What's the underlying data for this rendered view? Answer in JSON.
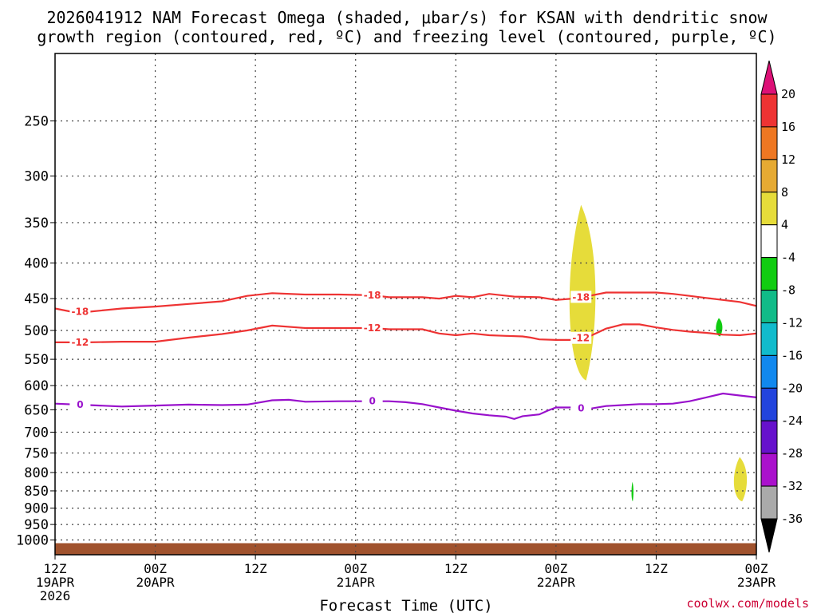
{
  "title_line1": "2026041912 NAM Forecast Omega (shaded, μbar/s) for KSAN with dendritic snow",
  "title_line2": "growth region (contoured, red, ºC) and freezing level (contoured, purple, ºC)",
  "credit": "coolwx.com/models",
  "chart_data": {
    "type": "time-height cross section",
    "title": "2026041912 NAM Forecast Omega (shaded, μbar/s) for KSAN with dendritic snow growth region (contoured, red, ºC) and freezing level (contoured, purple, ºC)",
    "xlabel": "Forecast Time (UTC)",
    "ylabel": "",
    "y_scale": "log",
    "ylim": [
      1050,
      200
    ],
    "xlim": [
      0,
      84
    ],
    "grid": true,
    "x_ticks": [
      {
        "hour": 0,
        "label": "12Z",
        "sub": [
          "19APR",
          "2026"
        ]
      },
      {
        "hour": 12,
        "label": "00Z",
        "sub": [
          "20APR"
        ]
      },
      {
        "hour": 24,
        "label": "12Z",
        "sub": []
      },
      {
        "hour": 36,
        "label": "00Z",
        "sub": [
          "21APR"
        ]
      },
      {
        "hour": 48,
        "label": "12Z",
        "sub": []
      },
      {
        "hour": 60,
        "label": "00Z",
        "sub": [
          "22APR"
        ]
      },
      {
        "hour": 72,
        "label": "12Z",
        "sub": []
      },
      {
        "hour": 84,
        "label": "00Z",
        "sub": [
          "23APR"
        ]
      }
    ],
    "y_ticks": [
      250,
      300,
      350,
      400,
      450,
      500,
      550,
      600,
      650,
      700,
      750,
      800,
      850,
      900,
      950,
      1000
    ],
    "series": [
      {
        "name": "-18",
        "units": "ºC",
        "color": "#ee3333",
        "x": [
          0,
          2,
          4,
          8,
          12,
          16,
          20,
          23,
          26,
          30,
          34,
          38,
          40,
          42,
          44,
          46,
          48,
          50,
          52,
          55,
          58,
          60,
          62,
          64,
          66,
          68,
          70,
          72,
          74,
          76,
          78,
          80,
          82,
          84
        ],
        "y": [
          465,
          470,
          470,
          465,
          462,
          458,
          454,
          446,
          442,
          444,
          444,
          445,
          448,
          448,
          448,
          450,
          446,
          448,
          443,
          447,
          448,
          452,
          450,
          446,
          441,
          441,
          441,
          441,
          443,
          446,
          449,
          452,
          455,
          461
        ]
      },
      {
        "name": "-12",
        "units": "ºC",
        "color": "#ee3333",
        "x": [
          0,
          4,
          8,
          12,
          16,
          20,
          23,
          26,
          30,
          34,
          38,
          40,
          42,
          44,
          46,
          48,
          50,
          52,
          54,
          56,
          57,
          58,
          60,
          62,
          64,
          66,
          68,
          70,
          72,
          74,
          76,
          78,
          80,
          82,
          84
        ],
        "y": [
          520,
          520,
          519,
          519,
          512,
          506,
          500,
          492,
          496,
          496,
          496,
          498,
          498,
          498,
          505,
          508,
          505,
          508,
          509,
          510,
          512,
          515,
          516,
          516,
          510,
          497,
          490,
          490,
          495,
          499,
          502,
          504,
          507,
          508,
          505
        ]
      },
      {
        "name": "0",
        "units": "ºC",
        "color": "#9911cc",
        "x": [
          0,
          4,
          8,
          12,
          16,
          20,
          23,
          26,
          28,
          30,
          34,
          38,
          40,
          42,
          44,
          46,
          48,
          50,
          52,
          54,
          55,
          56,
          58,
          59,
          60,
          62,
          64,
          66,
          68,
          70,
          72,
          74,
          76,
          78,
          80,
          82,
          84
        ],
        "y": [
          637,
          640,
          643,
          641,
          639,
          640,
          639,
          630,
          629,
          633,
          632,
          632,
          632,
          634,
          638,
          645,
          652,
          658,
          662,
          665,
          670,
          664,
          660,
          652,
          645,
          645,
          648,
          642,
          640,
          638,
          638,
          637,
          632,
          624,
          616,
          620,
          624
        ]
      }
    ],
    "omega_shading_regions": [
      {
        "value_bin": "4 to 8",
        "color": "#e6dc3a",
        "x_range_hours": [
          61,
          65
        ],
        "p_range_hPa": [
          330,
          590
        ]
      },
      {
        "value_bin": "4 to 8",
        "color": "#e6dc3a",
        "x_range_hours": [
          81,
          83
        ],
        "p_range_hPa": [
          760,
          880
        ]
      },
      {
        "value_bin": "-4 to -8",
        "color": "#11cc11",
        "x_range_hours": [
          79,
          80
        ],
        "p_range_hPa": [
          480,
          510
        ]
      },
      {
        "value_bin": "-4 to -8",
        "color": "#11cc11",
        "x_range_hours": [
          69,
          69.3
        ],
        "p_range_hPa": [
          825,
          880
        ]
      }
    ],
    "colorbar": {
      "levels": [
        20,
        16,
        12,
        8,
        4,
        -4,
        -8,
        -12,
        -16,
        -20,
        -24,
        -28,
        -32,
        -36
      ],
      "colors": [
        "#dd1177",
        "#ee3333",
        "#ee7722",
        "#e6aa33",
        "#e6dc3a",
        "#ffffff",
        "#11cc11",
        "#11bb88",
        "#11bbcc",
        "#1188ee",
        "#2244dd",
        "#6611cc",
        "#aa11cc",
        "#aaaaaa",
        "#000000"
      ]
    },
    "terrain_color": "#a0522d"
  }
}
